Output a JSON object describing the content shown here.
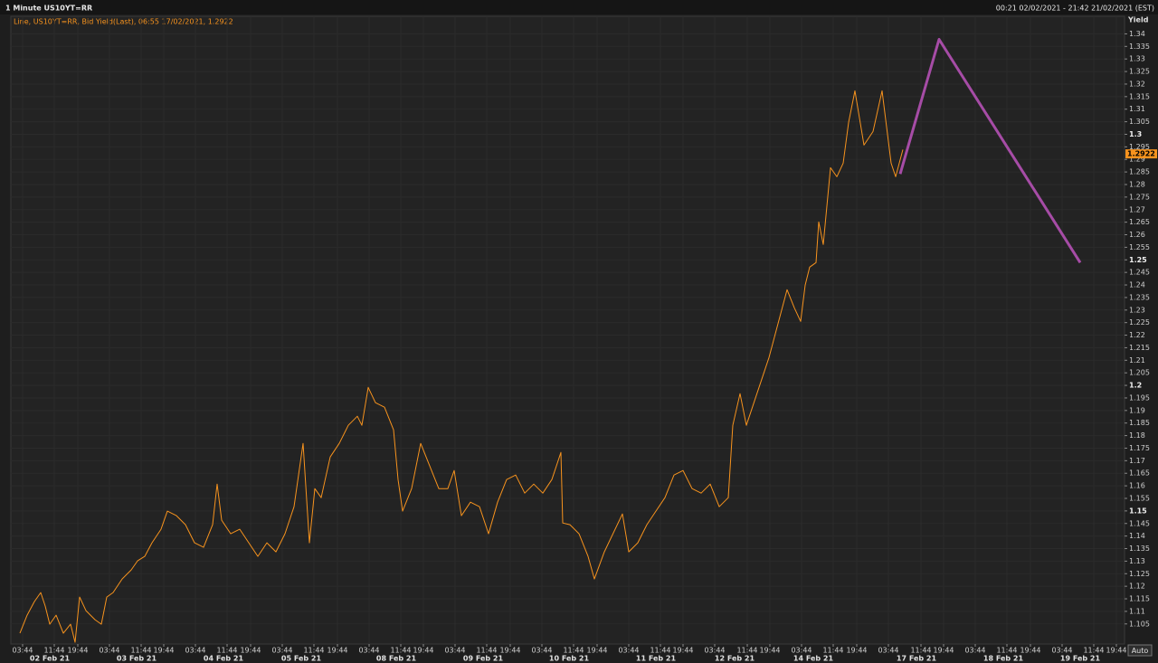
{
  "chart_data": {
    "type": "line",
    "title": "1 Minute US10YT=RR",
    "subtitle": "00:21 02/02/2021 - 21:42 21/02/2021 (EST)",
    "legend_text": "Line, US10YT=RR, Bid Yield(Last), 06:55 17/02/2021, 1.2922",
    "y_label": "Yield",
    "auto_label": "Auto",
    "last_value": 1.2922,
    "ylim": [
      1.097,
      1.347
    ],
    "yticks": [
      1.105,
      1.11,
      1.115,
      1.12,
      1.125,
      1.13,
      1.135,
      1.14,
      1.145,
      1.15,
      1.155,
      1.16,
      1.165,
      1.17,
      1.175,
      1.18,
      1.185,
      1.19,
      1.195,
      1.2,
      1.205,
      1.21,
      1.215,
      1.22,
      1.225,
      1.23,
      1.235,
      1.24,
      1.245,
      1.25,
      1.255,
      1.26,
      1.265,
      1.27,
      1.275,
      1.28,
      1.285,
      1.29,
      1.295,
      1.3,
      1.305,
      1.31,
      1.315,
      1.32,
      1.325,
      1.33,
      1.335,
      1.34
    ],
    "bold_yticks": [
      1.15,
      1.2,
      1.25,
      1.3
    ],
    "xlim": [
      0,
      1231
    ],
    "xticks": [
      {
        "value": 13,
        "label": "03:44"
      },
      {
        "value": 48,
        "label": "11:44"
      },
      {
        "value": 74,
        "label": "19:44"
      },
      {
        "value": 109,
        "label": "03:44"
      },
      {
        "value": 144,
        "label": "11:44"
      },
      {
        "value": 169,
        "label": "19:44"
      },
      {
        "value": 204,
        "label": "03:44"
      },
      {
        "value": 239,
        "label": "11:44"
      },
      {
        "value": 265,
        "label": "19:44"
      },
      {
        "value": 300,
        "label": "03:44"
      },
      {
        "value": 335,
        "label": "11:44"
      },
      {
        "value": 361,
        "label": "19:44"
      },
      {
        "value": 396,
        "label": "03:44"
      },
      {
        "value": 431,
        "label": "11:44"
      },
      {
        "value": 456,
        "label": "19:44"
      },
      {
        "value": 491,
        "label": "03:44"
      },
      {
        "value": 526,
        "label": "11:44"
      },
      {
        "value": 552,
        "label": "19:44"
      },
      {
        "value": 587,
        "label": "03:44"
      },
      {
        "value": 622,
        "label": "11:44"
      },
      {
        "value": 648,
        "label": "19:44"
      },
      {
        "value": 683,
        "label": "03:44"
      },
      {
        "value": 718,
        "label": "11:44"
      },
      {
        "value": 743,
        "label": "19:44"
      },
      {
        "value": 778,
        "label": "03:44"
      },
      {
        "value": 814,
        "label": "11:44"
      },
      {
        "value": 839,
        "label": "19:44"
      },
      {
        "value": 874,
        "label": "03:44"
      },
      {
        "value": 909,
        "label": "11:44"
      },
      {
        "value": 935,
        "label": "19:44"
      },
      {
        "value": 970,
        "label": "03:44"
      },
      {
        "value": 1006,
        "label": "11:44"
      },
      {
        "value": 1031,
        "label": "19:44"
      },
      {
        "value": 1066,
        "label": "03:44"
      },
      {
        "value": 1101,
        "label": "11:44"
      },
      {
        "value": 1127,
        "label": "19:44"
      },
      {
        "value": 1162,
        "label": "03:44"
      },
      {
        "value": 1197,
        "label": "11:44"
      },
      {
        "value": 1222,
        "label": "19:44"
      }
    ],
    "date_ticks": [
      {
        "value": 43,
        "label": "02 Feb 21"
      },
      {
        "value": 139,
        "label": "03 Feb 21"
      },
      {
        "value": 235,
        "label": "04 Feb 21"
      },
      {
        "value": 321,
        "label": "05 Feb 21"
      },
      {
        "value": 426,
        "label": "08 Feb 21"
      },
      {
        "value": 522,
        "label": "09 Feb 21"
      },
      {
        "value": 617,
        "label": "10 Feb 21"
      },
      {
        "value": 713,
        "label": "11 Feb 21"
      },
      {
        "value": 800,
        "label": "12 Feb 21"
      },
      {
        "value": 887,
        "label": "14 Feb 21"
      },
      {
        "value": 1001,
        "label": "17 Feb 21"
      },
      {
        "value": 1097,
        "label": "18 Feb 21"
      },
      {
        "value": 1182,
        "label": "19 Feb 21"
      }
    ],
    "grid": true,
    "series": [
      {
        "color": "#f7931e",
        "x": [
          10,
          18,
          26,
          33,
          38,
          43,
          50,
          58,
          66,
          71,
          76,
          83,
          93,
          100,
          106,
          113,
          123,
          133,
          140,
          148,
          156,
          166,
          173,
          183,
          193,
          203,
          213,
          223,
          228,
          233,
          243,
          253,
          263,
          273,
          283,
          293,
          303,
          313,
          323,
          330,
          336,
          343,
          353,
          363,
          373,
          383,
          388,
          395,
          403,
          413,
          423,
          428,
          433,
          443,
          453,
          463,
          473,
          483,
          490,
          498,
          508,
          518,
          528,
          538,
          548,
          558,
          568,
          578,
          588,
          598,
          608,
          610,
          618,
          628,
          638,
          645,
          656,
          676,
          683,
          693,
          703,
          713,
          723,
          733,
          743,
          753,
          763,
          773,
          783,
          793,
          798,
          806,
          813,
          823,
          838,
          858,
          866,
          873,
          878,
          883,
          890,
          893,
          898,
          906,
          913,
          920,
          926,
          933,
          938,
          943,
          953,
          963,
          968,
          973,
          978,
          986
        ],
        "values": [
          1.1013,
          1.1085,
          1.1139,
          1.1175,
          1.1121,
          1.1049,
          1.1085,
          1.1013,
          1.1049,
          1.0977,
          1.1157,
          1.1103,
          1.1067,
          1.1049,
          1.1157,
          1.1175,
          1.1229,
          1.1265,
          1.1301,
          1.1319,
          1.1373,
          1.1427,
          1.1499,
          1.1481,
          1.1445,
          1.1373,
          1.1355,
          1.1445,
          1.1607,
          1.1463,
          1.1409,
          1.1427,
          1.1373,
          1.1319,
          1.1373,
          1.1337,
          1.1409,
          1.1517,
          1.1769,
          1.1373,
          1.1589,
          1.1553,
          1.1715,
          1.1769,
          1.1841,
          1.1877,
          1.1841,
          1.1992,
          1.1931,
          1.1913,
          1.1823,
          1.1625,
          1.1499,
          1.1589,
          1.1769,
          1.1679,
          1.1589,
          1.1589,
          1.1661,
          1.1481,
          1.1535,
          1.1517,
          1.1409,
          1.1535,
          1.1625,
          1.1643,
          1.1571,
          1.1607,
          1.1571,
          1.1625,
          1.1733,
          1.1452,
          1.1445,
          1.1409,
          1.1319,
          1.1229,
          1.1337,
          1.1488,
          1.1337,
          1.1373,
          1.1445,
          1.1499,
          1.1553,
          1.1643,
          1.1661,
          1.1589,
          1.1571,
          1.1607,
          1.1517,
          1.1553,
          1.1841,
          1.1967,
          1.1841,
          1.1949,
          1.2111,
          1.2381,
          1.2309,
          1.2255,
          1.2399,
          1.2471,
          1.2489,
          1.2651,
          1.2561,
          1.2867,
          1.2831,
          1.2885,
          1.3047,
          1.3173,
          1.3065,
          1.2957,
          1.3011,
          1.3173,
          1.3029,
          1.2885,
          1.2831,
          1.2939
        ],
        "width": 1
      },
      {
        "color": "#a64ca6",
        "x": [
          983,
          1026,
          1182
        ],
        "values": [
          1.2842,
          1.3378,
          1.2489
        ],
        "width": 3
      }
    ]
  }
}
